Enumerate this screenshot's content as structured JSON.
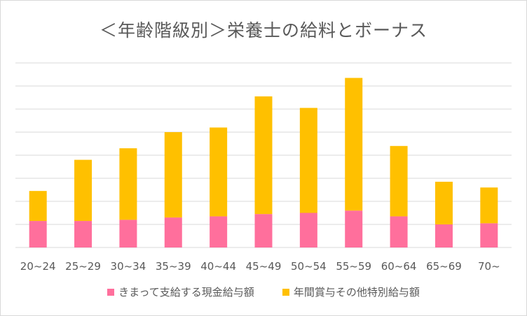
{
  "chart_data": {
    "type": "bar",
    "stacked": true,
    "title": "＜年齢階級別＞栄養士の給料とボーナス",
    "xlabel": "",
    "ylabel": "",
    "ylim": [
      0,
      8
    ],
    "gridlines": true,
    "yaxis_labels_shown": false,
    "legend_position": "bottom",
    "categories": [
      "20~24",
      "25~29",
      "30~34",
      "35~39",
      "40~44",
      "45~49",
      "50~54",
      "55~59",
      "60~64",
      "65~69",
      "70~"
    ],
    "series": [
      {
        "name": "きまって支給する現金給与額",
        "color": "#ff6f9c",
        "values": [
          1.15,
          1.15,
          1.2,
          1.3,
          1.35,
          1.45,
          1.5,
          1.6,
          1.35,
          1.0,
          1.05
        ]
      },
      {
        "name": "年間賞与その他特別給与額",
        "color": "#ffc000",
        "values": [
          1.3,
          2.65,
          3.1,
          3.7,
          3.85,
          5.1,
          4.55,
          5.75,
          3.05,
          1.85,
          1.55
        ]
      }
    ]
  }
}
